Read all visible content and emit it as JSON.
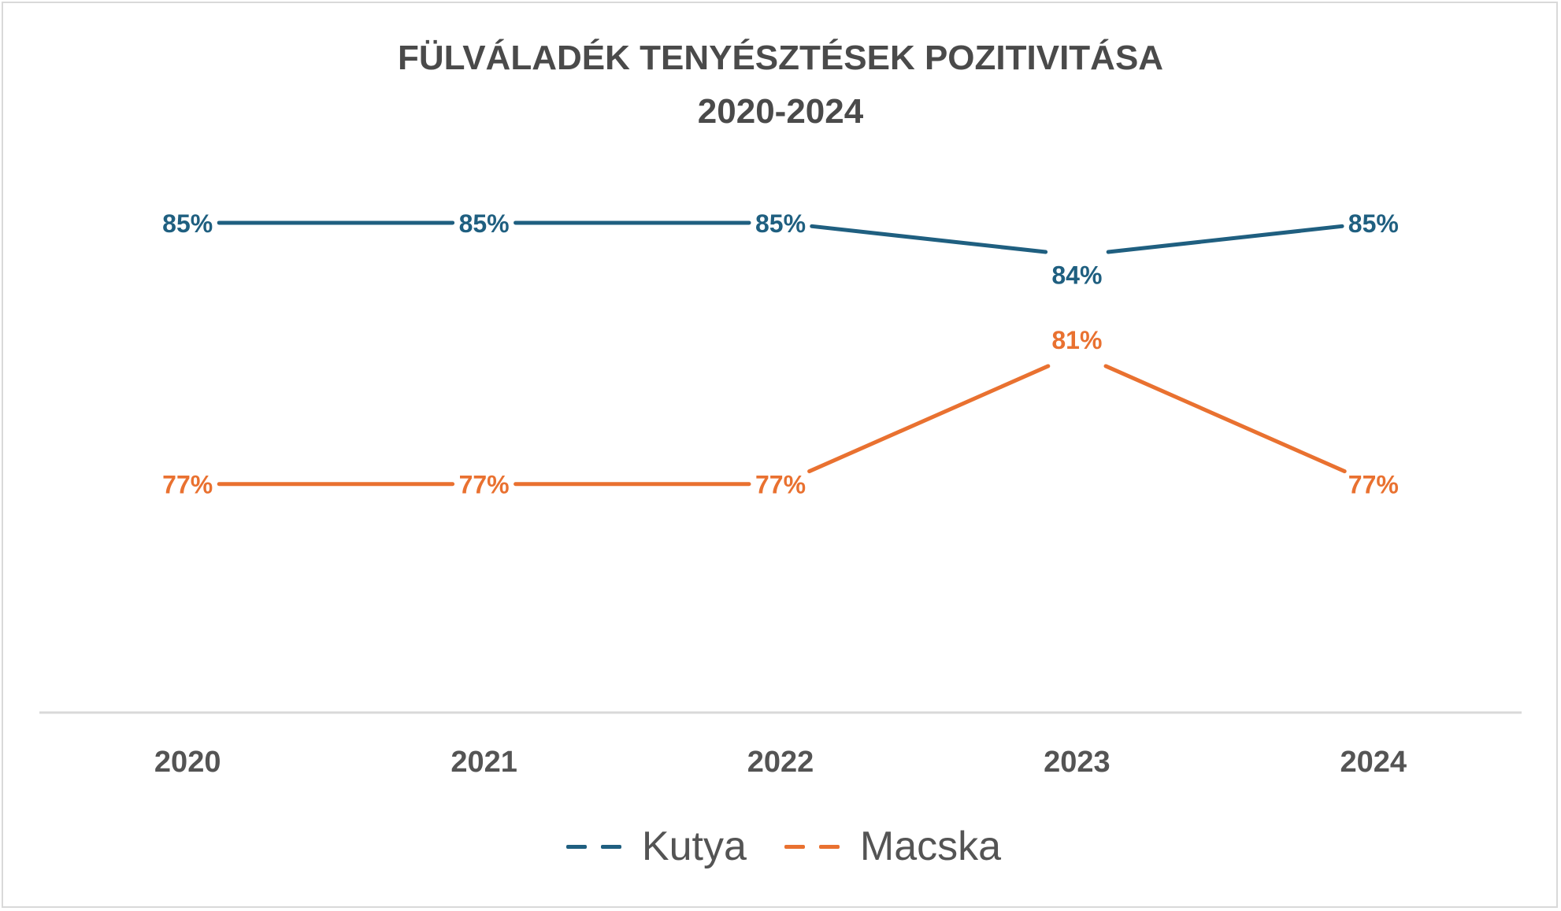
{
  "chart_data": {
    "type": "line",
    "title_lines": [
      "FÜLVÁLADÉK TENYÉSZTÉSEK POZITIVITÁSA",
      "2020-2024"
    ],
    "categories": [
      "2020",
      "2021",
      "2022",
      "2023",
      "2024"
    ],
    "series": [
      {
        "name": "Kutya",
        "color": "#1f5f80",
        "values": [
          85,
          85,
          85,
          84,
          85
        ],
        "labels": [
          "85%",
          "85%",
          "85%",
          "84%",
          "85%"
        ]
      },
      {
        "name": "Macska",
        "color": "#e97130",
        "values": [
          77,
          77,
          77,
          81,
          77
        ],
        "labels": [
          "77%",
          "77%",
          "77%",
          "81%",
          "77%"
        ]
      }
    ],
    "ylim": [
      70,
      87
    ],
    "grid": false,
    "legend_position": "bottom"
  }
}
